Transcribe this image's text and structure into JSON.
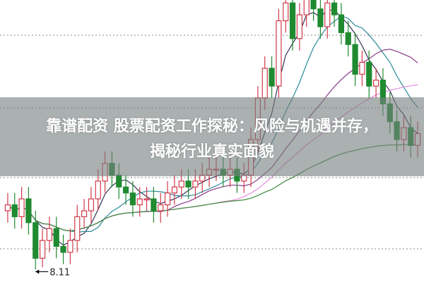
{
  "title": {
    "line1": "靠谱配资 股票配资工作探秘：风险与机遇并存，",
    "line2": "揭秘行业真实面貌"
  },
  "colors": {
    "up": "#d03a4a",
    "down": "#1f8a30",
    "ma": [
      "#333355",
      "#2a8a9a",
      "#8a3a8a",
      "#e58ae0",
      "#3a8a3a"
    ]
  },
  "chart_data": {
    "type": "candlestick",
    "ylim": [
      7.9,
      12.65
    ],
    "grid": "horizontal-dotted",
    "annotations": [
      {
        "label": "8.11",
        "index": 4,
        "kind": "low-marker"
      }
    ],
    "moving_average_periods": [
      5,
      10,
      20,
      30,
      60
    ],
    "open": [
      9.1,
      9.2,
      9.0,
      9.3,
      8.9,
      8.3,
      8.6,
      8.8,
      8.5,
      8.4,
      8.6,
      9.0,
      9.1,
      9.3,
      9.6,
      9.9,
      9.7,
      9.5,
      9.4,
      9.2,
      9.3,
      9.3,
      9.1,
      9.2,
      9.4,
      9.5,
      9.6,
      9.5,
      9.6,
      9.7,
      9.8,
      9.8,
      9.7,
      9.8,
      9.6,
      9.7,
      10.3,
      11.0,
      11.5,
      11.2,
      12.3,
      12.6,
      12.0,
      12.4,
      12.7,
      12.5,
      12.2,
      12.6,
      12.4,
      12.1,
      11.9,
      11.4,
      11.6,
      11.2,
      11.3,
      10.9,
      10.6,
      10.3,
      10.5,
      10.2
    ],
    "close": [
      9.2,
      9.0,
      9.3,
      8.9,
      8.3,
      8.6,
      8.8,
      8.5,
      8.4,
      8.6,
      9.0,
      9.1,
      9.3,
      9.6,
      9.9,
      9.7,
      9.5,
      9.4,
      9.2,
      9.3,
      9.3,
      9.1,
      9.2,
      9.4,
      9.5,
      9.6,
      9.5,
      9.6,
      9.7,
      9.8,
      9.8,
      9.7,
      9.8,
      9.6,
      9.7,
      10.3,
      11.0,
      11.5,
      11.2,
      12.3,
      12.6,
      12.0,
      12.4,
      12.7,
      12.5,
      12.2,
      12.6,
      12.4,
      12.1,
      11.9,
      11.4,
      11.6,
      11.2,
      11.3,
      10.9,
      10.6,
      10.3,
      10.5,
      10.2,
      10.4
    ],
    "high": [
      9.4,
      9.4,
      9.5,
      9.5,
      9.1,
      8.8,
      9.0,
      9.0,
      8.7,
      8.8,
      9.2,
      9.3,
      9.5,
      9.8,
      10.1,
      10.1,
      9.9,
      9.7,
      9.6,
      9.5,
      9.5,
      9.5,
      9.4,
      9.6,
      9.7,
      9.8,
      9.8,
      9.8,
      9.9,
      10.0,
      10.0,
      10.0,
      10.0,
      10.0,
      9.9,
      10.5,
      11.2,
      11.7,
      11.7,
      12.5,
      12.8,
      12.8,
      12.6,
      12.9,
      12.9,
      12.7,
      12.8,
      12.8,
      12.6,
      12.3,
      12.1,
      11.8,
      11.8,
      11.5,
      11.5,
      11.1,
      10.8,
      10.7,
      10.7,
      10.6
    ],
    "low": [
      8.9,
      8.8,
      8.8,
      8.7,
      8.11,
      8.15,
      8.4,
      8.3,
      8.2,
      8.2,
      8.4,
      8.8,
      8.9,
      9.1,
      9.4,
      9.5,
      9.3,
      9.2,
      9.0,
      9.0,
      9.1,
      8.9,
      8.9,
      9.0,
      9.2,
      9.3,
      9.3,
      9.3,
      9.4,
      9.5,
      9.6,
      9.5,
      9.5,
      9.4,
      9.4,
      9.5,
      10.1,
      10.8,
      11.0,
      11.0,
      12.1,
      11.8,
      11.8,
      12.2,
      12.3,
      12.0,
      12.0,
      12.2,
      11.9,
      11.7,
      11.2,
      11.2,
      11.0,
      11.0,
      10.7,
      10.4,
      10.1,
      10.1,
      10.0,
      10.0
    ]
  }
}
